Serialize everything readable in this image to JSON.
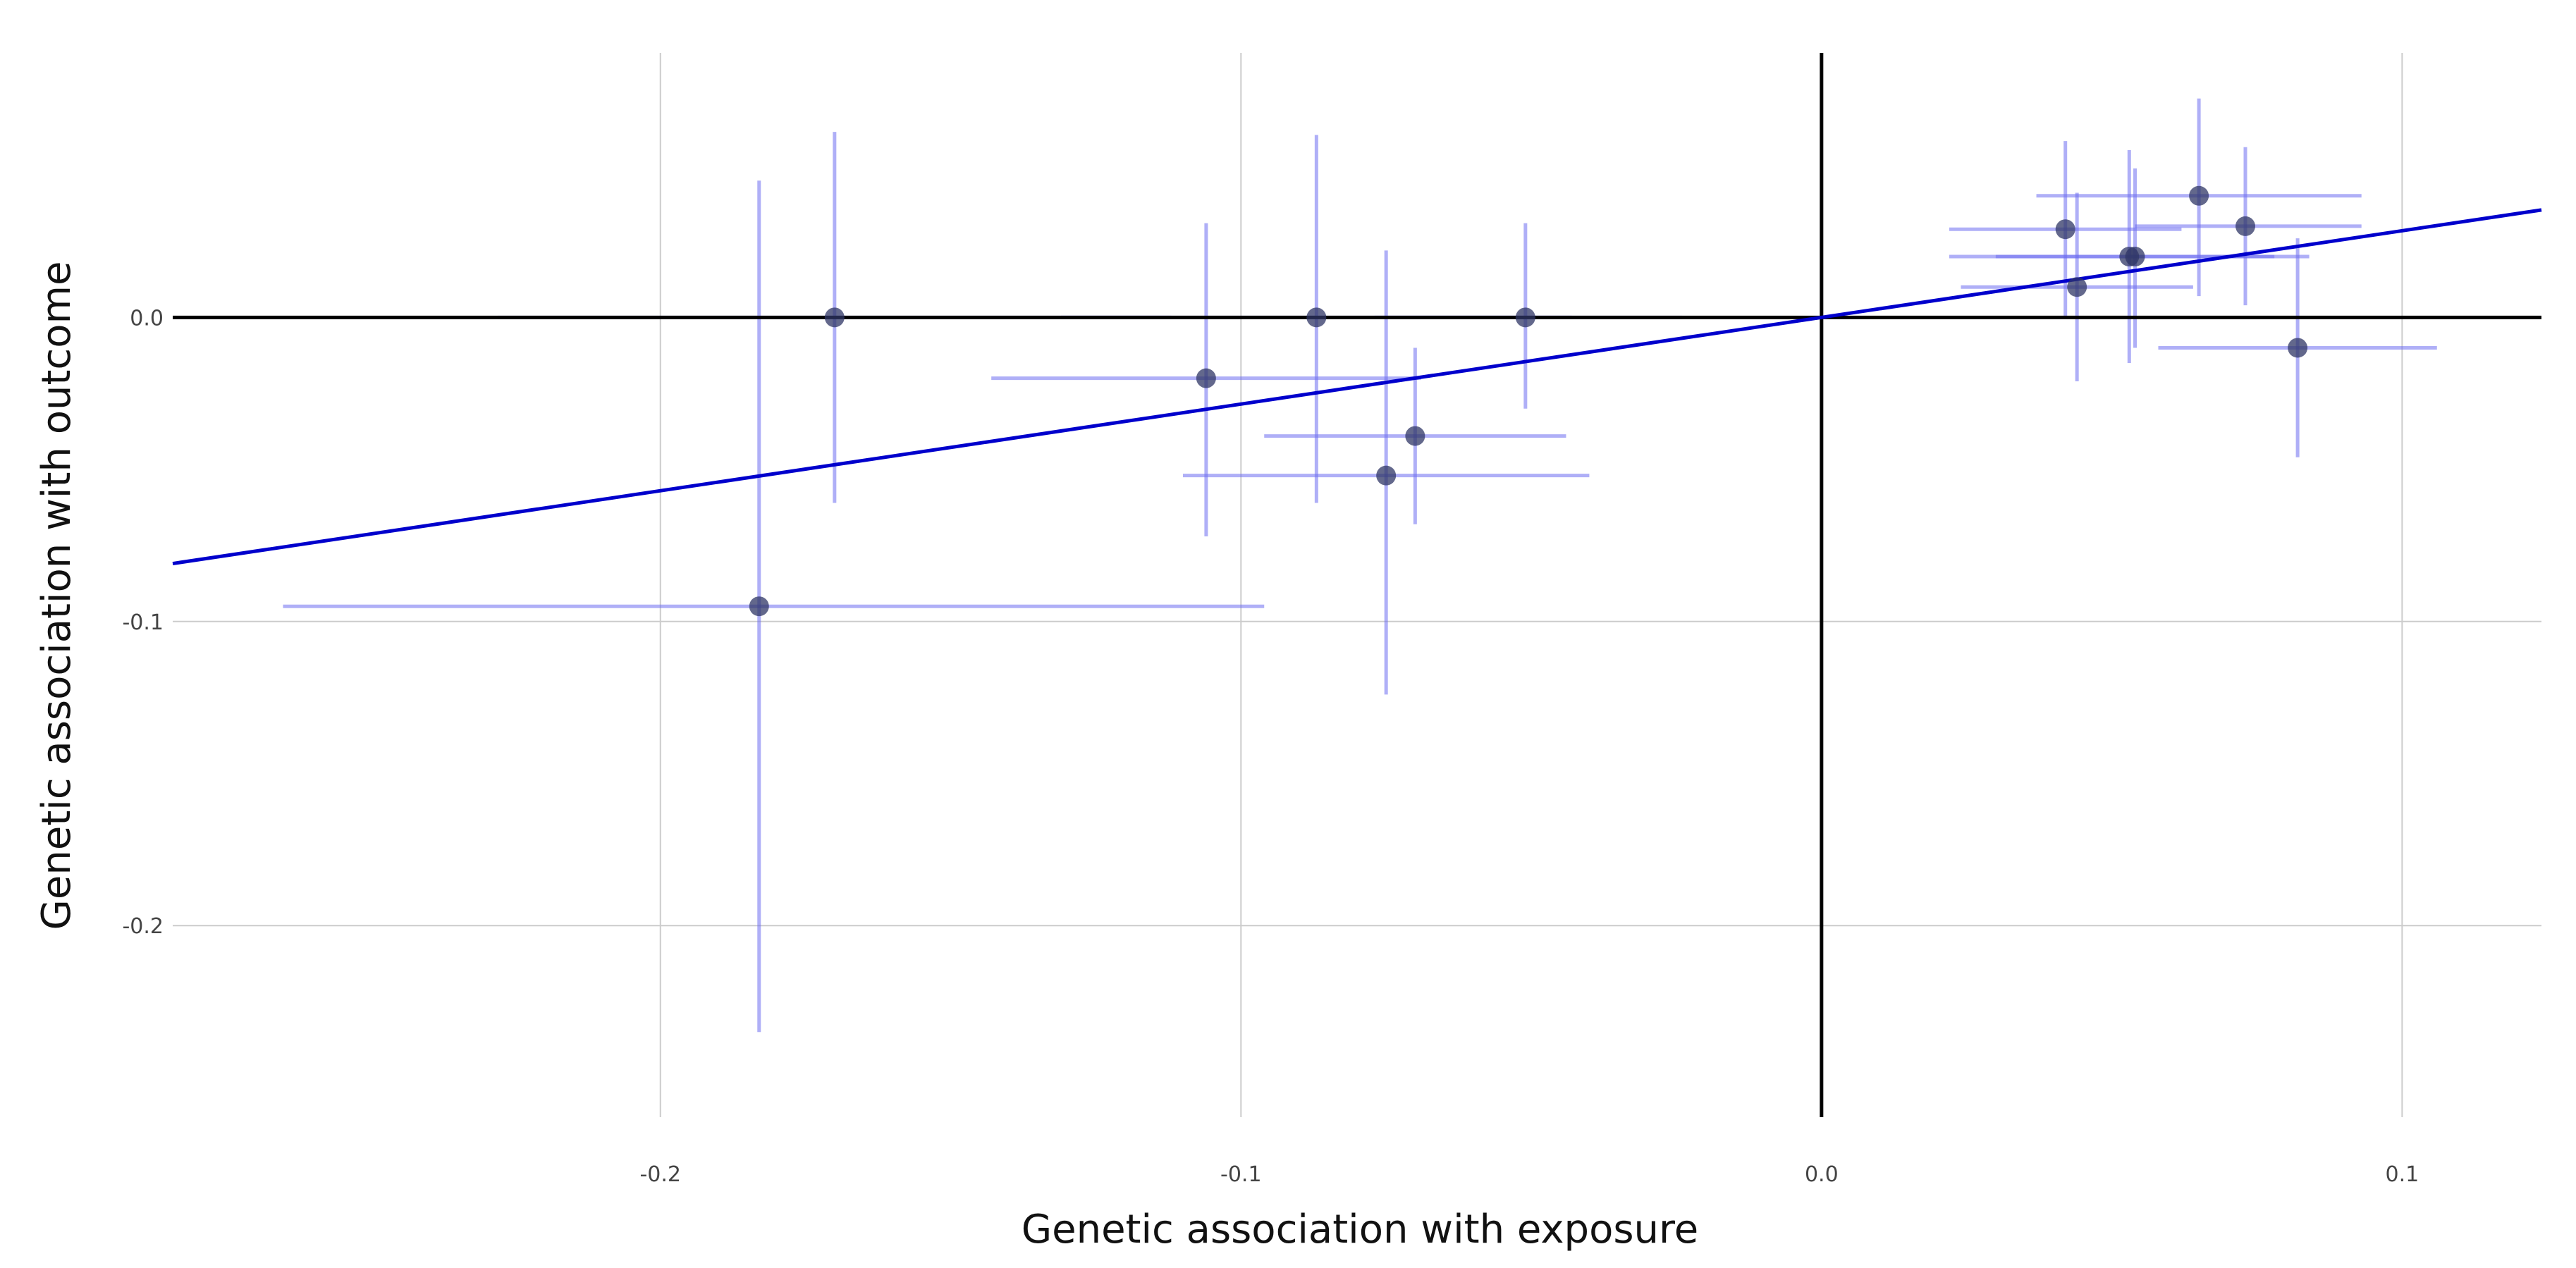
{
  "chart_data": {
    "type": "scatter",
    "title": "",
    "xlabel": "Genetic association with exposure",
    "ylabel": "Genetic association with outcome",
    "xlim": [
      -0.284,
      0.124
    ],
    "ylim": [
      -0.263,
      0.087
    ],
    "xticks": [
      -0.2,
      -0.1,
      0.0,
      0.1
    ],
    "yticks": [
      0.0,
      -0.1,
      -0.2
    ],
    "xtick_labels": [
      "-0.2",
      "-0.1",
      "0.0",
      "0.1"
    ],
    "ytick_labels": [
      "0.0",
      "-0.1",
      "-0.2"
    ],
    "grid": true,
    "fit_line": {
      "slope": 0.285,
      "intercept": 0.0,
      "label": ""
    },
    "points": [
      {
        "x": -0.17,
        "y": 0.0,
        "x_lo": -0.228,
        "x_hi": -0.112,
        "y_lo": -0.061,
        "y_hi": 0.061
      },
      {
        "x": -0.183,
        "y": -0.095,
        "x_lo": -0.265,
        "x_hi": -0.096,
        "y_lo": -0.235,
        "y_hi": 0.045
      },
      {
        "x": -0.106,
        "y": -0.02,
        "x_lo": -0.143,
        "x_hi": -0.069,
        "y_lo": -0.072,
        "y_hi": 0.031
      },
      {
        "x": -0.087,
        "y": 0.0,
        "x_lo": -0.131,
        "x_hi": -0.043,
        "y_lo": -0.061,
        "y_hi": 0.06
      },
      {
        "x": -0.075,
        "y": -0.052,
        "x_lo": -0.11,
        "x_hi": -0.04,
        "y_lo": -0.124,
        "y_hi": 0.022
      },
      {
        "x": -0.07,
        "y": -0.039,
        "x_lo": -0.096,
        "x_hi": -0.044,
        "y_lo": -0.068,
        "y_hi": -0.01
      },
      {
        "x": -0.051,
        "y": 0.0,
        "x_lo": -0.077,
        "x_hi": -0.024,
        "y_lo": -0.03,
        "y_hi": 0.031
      },
      {
        "x": 0.042,
        "y": 0.029,
        "x_lo": 0.022,
        "x_hi": 0.062,
        "y_lo": 0.0,
        "y_hi": 0.058
      },
      {
        "x": 0.044,
        "y": 0.01,
        "x_lo": 0.024,
        "x_hi": 0.064,
        "y_lo": -0.021,
        "y_hi": 0.041
      },
      {
        "x": 0.053,
        "y": 0.02,
        "x_lo": 0.022,
        "x_hi": 0.084,
        "y_lo": -0.015,
        "y_hi": 0.055
      },
      {
        "x": 0.054,
        "y": 0.02,
        "x_lo": 0.03,
        "x_hi": 0.078,
        "y_lo": -0.01,
        "y_hi": 0.049
      },
      {
        "x": 0.065,
        "y": 0.04,
        "x_lo": 0.037,
        "x_hi": 0.093,
        "y_lo": 0.007,
        "y_hi": 0.072
      },
      {
        "x": 0.073,
        "y": 0.03,
        "x_lo": 0.054,
        "x_hi": 0.093,
        "y_lo": 0.004,
        "y_hi": 0.056
      },
      {
        "x": 0.082,
        "y": -0.01,
        "x_lo": 0.058,
        "x_hi": 0.106,
        "y_lo": -0.046,
        "y_hi": 0.026
      }
    ]
  },
  "colors": {
    "point": "#2f3566",
    "errorbar": "#6d6df0",
    "fitline": "#0000cc",
    "zeroline": "#000000",
    "grid": "#cccccc"
  }
}
